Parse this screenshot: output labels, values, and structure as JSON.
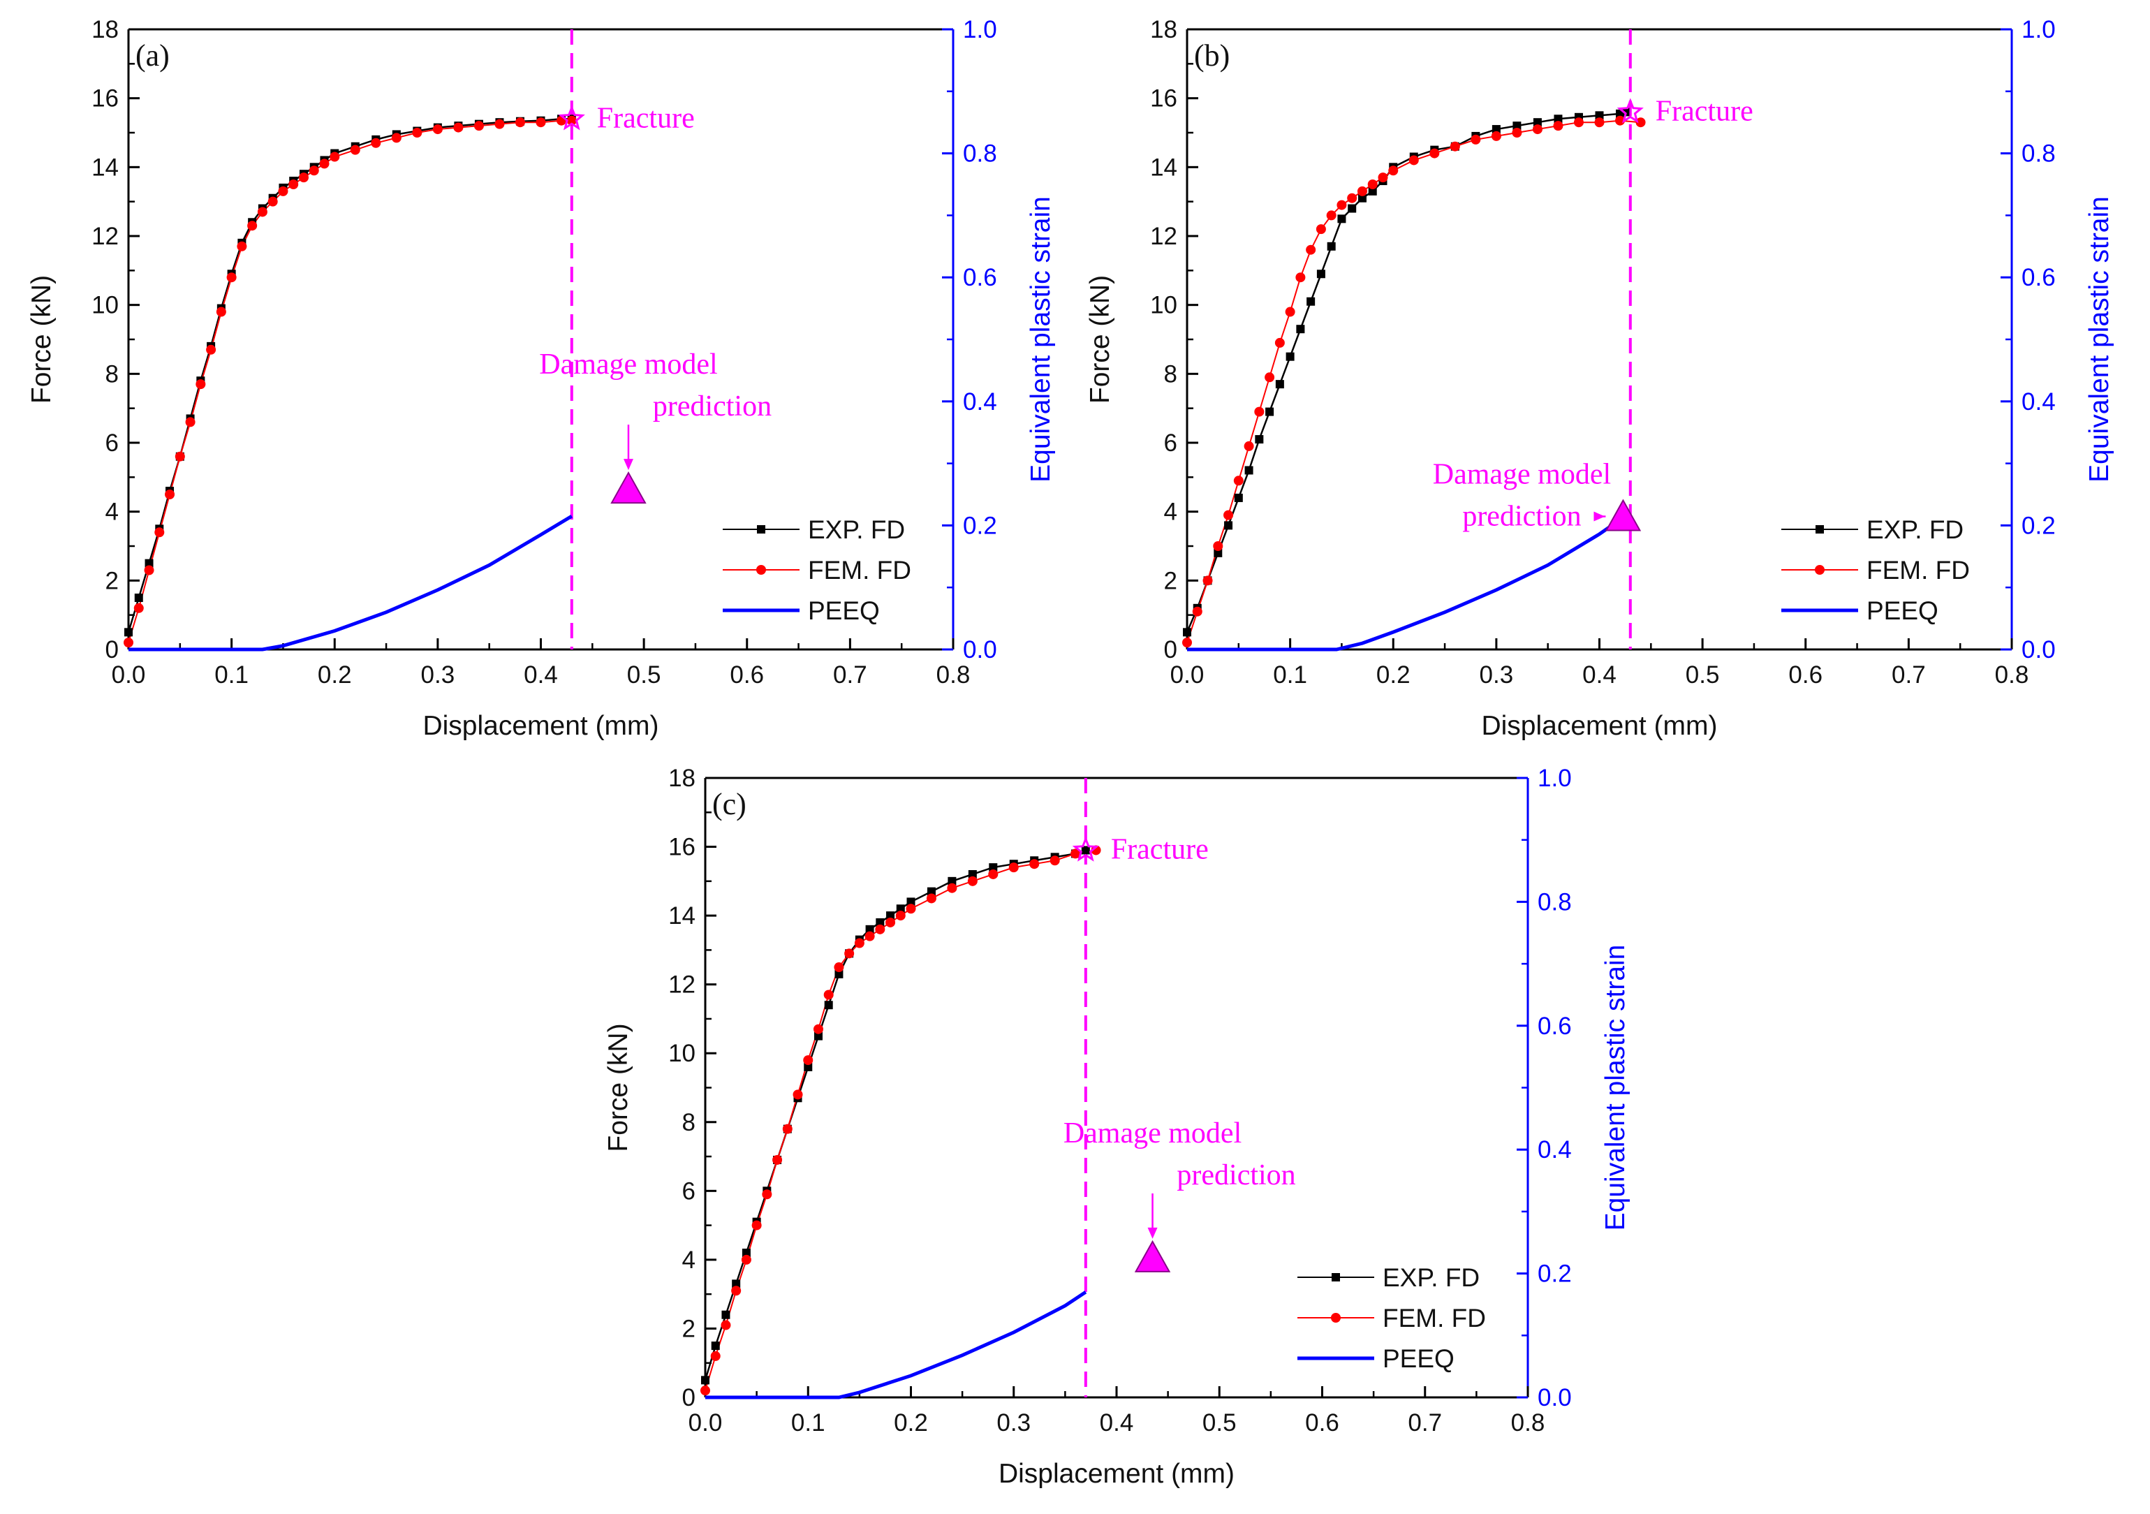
{
  "chart_data": [
    {
      "type": "line",
      "panel_label": "(a)",
      "xlabel": "Displacement (mm)",
      "ylabel": "Force (kN)",
      "y2label": "Equivalent plastic strain",
      "xlim": [
        0,
        0.8
      ],
      "ylim": [
        0,
        18
      ],
      "y2lim": [
        0,
        1.0
      ],
      "xticks": [
        "0.0",
        "0.1",
        "0.2",
        "0.3",
        "0.4",
        "0.5",
        "0.6",
        "0.7",
        "0.8"
      ],
      "yticks": [
        "0",
        "2",
        "4",
        "6",
        "8",
        "10",
        "12",
        "14",
        "16",
        "18"
      ],
      "y2ticks": [
        "0.0",
        "0.2",
        "0.4",
        "0.6",
        "0.8",
        "1.0"
      ],
      "legend_position": "bottom-right",
      "series": [
        {
          "name": "EXP. FD",
          "axis": "left",
          "color": "#000000",
          "marker": "square",
          "x": [
            0.0,
            0.01,
            0.02,
            0.03,
            0.04,
            0.05,
            0.06,
            0.07,
            0.08,
            0.09,
            0.1,
            0.11,
            0.12,
            0.13,
            0.14,
            0.15,
            0.16,
            0.17,
            0.18,
            0.19,
            0.2,
            0.22,
            0.24,
            0.26,
            0.28,
            0.3,
            0.32,
            0.34,
            0.36,
            0.38,
            0.4,
            0.42,
            0.43
          ],
          "y": [
            0.5,
            1.5,
            2.5,
            3.5,
            4.6,
            5.6,
            6.7,
            7.8,
            8.8,
            9.9,
            10.9,
            11.8,
            12.4,
            12.8,
            13.1,
            13.4,
            13.6,
            13.8,
            14.0,
            14.2,
            14.4,
            14.6,
            14.8,
            14.95,
            15.05,
            15.15,
            15.2,
            15.25,
            15.3,
            15.33,
            15.35,
            15.4,
            15.4
          ]
        },
        {
          "name": "FEM. FD",
          "axis": "left",
          "color": "#ff0000",
          "marker": "circle",
          "x": [
            0.0,
            0.01,
            0.02,
            0.03,
            0.04,
            0.05,
            0.06,
            0.07,
            0.08,
            0.09,
            0.1,
            0.11,
            0.12,
            0.13,
            0.14,
            0.15,
            0.16,
            0.17,
            0.18,
            0.19,
            0.2,
            0.22,
            0.24,
            0.26,
            0.28,
            0.3,
            0.32,
            0.34,
            0.36,
            0.38,
            0.4,
            0.42,
            0.43
          ],
          "y": [
            0.2,
            1.2,
            2.3,
            3.4,
            4.5,
            5.6,
            6.6,
            7.7,
            8.7,
            9.8,
            10.8,
            11.7,
            12.3,
            12.7,
            13.0,
            13.3,
            13.5,
            13.7,
            13.9,
            14.1,
            14.3,
            14.5,
            14.7,
            14.85,
            15.0,
            15.1,
            15.15,
            15.2,
            15.25,
            15.3,
            15.3,
            15.35,
            15.35
          ]
        },
        {
          "name": "PEEQ",
          "axis": "right",
          "color": "#0000ff",
          "marker": "none",
          "x": [
            0.0,
            0.13,
            0.15,
            0.2,
            0.25,
            0.3,
            0.35,
            0.4,
            0.43
          ],
          "y": [
            0.0,
            0.0,
            0.006,
            0.03,
            0.06,
            0.096,
            0.136,
            0.185,
            0.215
          ]
        }
      ],
      "fracture": {
        "label": "Fracture",
        "x": 0.43,
        "y": 15.4
      },
      "damage": {
        "label_line1": "Damage model",
        "label_line2": "prediction",
        "x": 0.485,
        "y": 4.6
      }
    },
    {
      "type": "line",
      "panel_label": "(b)",
      "xlabel": "Displacement (mm)",
      "ylabel": "Force (kN)",
      "y2label": "Equivalent plastic strain",
      "xlim": [
        0,
        0.8
      ],
      "ylim": [
        0,
        18
      ],
      "y2lim": [
        0,
        1.0
      ],
      "xticks": [
        "0.0",
        "0.1",
        "0.2",
        "0.3",
        "0.4",
        "0.5",
        "0.6",
        "0.7",
        "0.8"
      ],
      "yticks": [
        "0",
        "2",
        "4",
        "6",
        "8",
        "10",
        "12",
        "14",
        "16",
        "18"
      ],
      "y2ticks": [
        "0.0",
        "0.2",
        "0.4",
        "0.6",
        "0.8",
        "1.0"
      ],
      "legend_position": "bottom-right",
      "series": [
        {
          "name": "EXP. FD",
          "axis": "left",
          "color": "#000000",
          "marker": "square",
          "x": [
            0.0,
            0.01,
            0.02,
            0.03,
            0.04,
            0.05,
            0.06,
            0.07,
            0.08,
            0.09,
            0.1,
            0.11,
            0.12,
            0.13,
            0.14,
            0.15,
            0.16,
            0.17,
            0.18,
            0.19,
            0.2,
            0.22,
            0.24,
            0.26,
            0.28,
            0.3,
            0.32,
            0.34,
            0.36,
            0.38,
            0.4,
            0.42,
            0.425
          ],
          "y": [
            0.5,
            1.2,
            2.0,
            2.8,
            3.6,
            4.4,
            5.2,
            6.1,
            6.9,
            7.7,
            8.5,
            9.3,
            10.1,
            10.9,
            11.7,
            12.5,
            12.8,
            13.1,
            13.3,
            13.6,
            14.0,
            14.3,
            14.5,
            14.6,
            14.9,
            15.1,
            15.2,
            15.3,
            15.4,
            15.45,
            15.5,
            15.55,
            15.6
          ]
        },
        {
          "name": "FEM. FD",
          "axis": "left",
          "color": "#ff0000",
          "marker": "circle",
          "x": [
            0.0,
            0.01,
            0.02,
            0.03,
            0.04,
            0.05,
            0.06,
            0.07,
            0.08,
            0.09,
            0.1,
            0.11,
            0.12,
            0.13,
            0.14,
            0.15,
            0.16,
            0.17,
            0.18,
            0.19,
            0.2,
            0.22,
            0.24,
            0.26,
            0.28,
            0.3,
            0.32,
            0.34,
            0.36,
            0.38,
            0.4,
            0.42,
            0.44
          ],
          "y": [
            0.2,
            1.1,
            2.0,
            3.0,
            3.9,
            4.9,
            5.9,
            6.9,
            7.9,
            8.9,
            9.8,
            10.8,
            11.6,
            12.2,
            12.6,
            12.9,
            13.1,
            13.3,
            13.5,
            13.7,
            13.9,
            14.2,
            14.4,
            14.6,
            14.8,
            14.9,
            15.0,
            15.1,
            15.2,
            15.3,
            15.3,
            15.35,
            15.3
          ]
        },
        {
          "name": "PEEQ",
          "axis": "right",
          "color": "#0000ff",
          "marker": "none",
          "x": [
            0.0,
            0.145,
            0.17,
            0.2,
            0.25,
            0.3,
            0.35,
            0.4,
            0.425
          ],
          "y": [
            0.0,
            0.0,
            0.01,
            0.028,
            0.06,
            0.096,
            0.136,
            0.186,
            0.215
          ]
        }
      ],
      "fracture": {
        "label": "Fracture",
        "x": 0.43,
        "y": 15.6
      },
      "damage": {
        "label_line1": "Damage model",
        "label_line2": "prediction",
        "x": 0.423,
        "y": 3.8
      }
    },
    {
      "type": "line",
      "panel_label": "(c)",
      "xlabel": "Displacement (mm)",
      "ylabel": "Force (kN)",
      "y2label": "Equivalent plastic strain",
      "xlim": [
        0,
        0.8
      ],
      "ylim": [
        0,
        18
      ],
      "y2lim": [
        0,
        1.0
      ],
      "xticks": [
        "0.0",
        "0.1",
        "0.2",
        "0.3",
        "0.4",
        "0.5",
        "0.6",
        "0.7",
        "0.8"
      ],
      "yticks": [
        "0",
        "2",
        "4",
        "6",
        "8",
        "10",
        "12",
        "14",
        "16",
        "18"
      ],
      "y2ticks": [
        "0.0",
        "0.2",
        "0.4",
        "0.6",
        "0.8",
        "1.0"
      ],
      "legend_position": "bottom-right",
      "series": [
        {
          "name": "EXP. FD",
          "axis": "left",
          "color": "#000000",
          "marker": "square",
          "x": [
            0.0,
            0.01,
            0.02,
            0.03,
            0.04,
            0.05,
            0.06,
            0.07,
            0.08,
            0.09,
            0.1,
            0.11,
            0.12,
            0.13,
            0.14,
            0.15,
            0.16,
            0.17,
            0.18,
            0.19,
            0.2,
            0.22,
            0.24,
            0.26,
            0.28,
            0.3,
            0.32,
            0.34,
            0.36,
            0.37
          ],
          "y": [
            0.5,
            1.5,
            2.4,
            3.3,
            4.2,
            5.1,
            6.0,
            6.9,
            7.8,
            8.7,
            9.6,
            10.5,
            11.4,
            12.3,
            12.9,
            13.3,
            13.6,
            13.8,
            14.0,
            14.2,
            14.4,
            14.7,
            15.0,
            15.2,
            15.4,
            15.5,
            15.6,
            15.7,
            15.8,
            15.9
          ]
        },
        {
          "name": "FEM. FD",
          "axis": "left",
          "color": "#ff0000",
          "marker": "circle",
          "x": [
            0.0,
            0.01,
            0.02,
            0.03,
            0.04,
            0.05,
            0.06,
            0.07,
            0.08,
            0.09,
            0.1,
            0.11,
            0.12,
            0.13,
            0.14,
            0.15,
            0.16,
            0.17,
            0.18,
            0.19,
            0.2,
            0.22,
            0.24,
            0.26,
            0.28,
            0.3,
            0.32,
            0.34,
            0.36,
            0.38
          ],
          "y": [
            0.2,
            1.2,
            2.1,
            3.1,
            4.0,
            5.0,
            5.9,
            6.9,
            7.8,
            8.8,
            9.8,
            10.7,
            11.7,
            12.5,
            12.9,
            13.2,
            13.4,
            13.6,
            13.8,
            14.0,
            14.2,
            14.5,
            14.8,
            15.0,
            15.2,
            15.4,
            15.5,
            15.6,
            15.8,
            15.9
          ]
        },
        {
          "name": "PEEQ",
          "axis": "right",
          "color": "#0000ff",
          "marker": "none",
          "x": [
            0.0,
            0.13,
            0.15,
            0.2,
            0.25,
            0.3,
            0.35,
            0.37
          ],
          "y": [
            0.0,
            0.0,
            0.008,
            0.035,
            0.068,
            0.105,
            0.148,
            0.17
          ]
        }
      ],
      "fracture": {
        "label": "Fracture",
        "x": 0.37,
        "y": 15.9
      },
      "damage": {
        "label_line1": "Damage model",
        "label_line2": "prediction",
        "x": 0.435,
        "y": 4.0
      }
    }
  ],
  "colors": {
    "annotation": "#ff00ff",
    "right_axis": "#0000ff",
    "axis": "#000000"
  }
}
